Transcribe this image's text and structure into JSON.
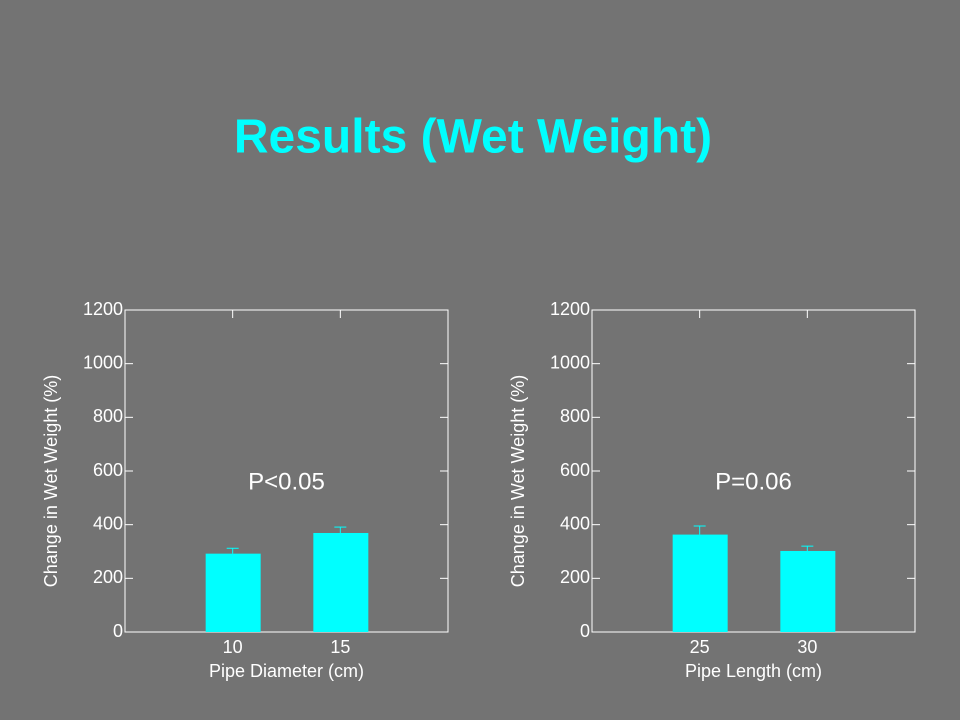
{
  "title": "Results (Wet Weight)",
  "chart_data": [
    {
      "type": "bar",
      "categories": [
        "10",
        "15"
      ],
      "values": [
        292,
        369
      ],
      "errors": [
        20,
        22
      ],
      "color": "#00ffff",
      "xlabel": "Pipe Diameter (cm)",
      "ylabel": "Change in Wet Weight (%)",
      "annotation": "P<0.05",
      "ylim": [
        0,
        1200
      ],
      "yticks": [
        0,
        200,
        400,
        600,
        800,
        1000,
        1200
      ]
    },
    {
      "type": "bar",
      "categories": [
        "25",
        "30"
      ],
      "values": [
        363,
        302
      ],
      "errors": [
        32,
        18
      ],
      "color": "#00ffff",
      "xlabel": "Pipe Length (cm)",
      "ylabel": "Change in Wet Weight (%)",
      "annotation": "P=0.06",
      "ylim": [
        0,
        1200
      ],
      "yticks": [
        0,
        200,
        400,
        600,
        800,
        1000,
        1200
      ]
    }
  ]
}
